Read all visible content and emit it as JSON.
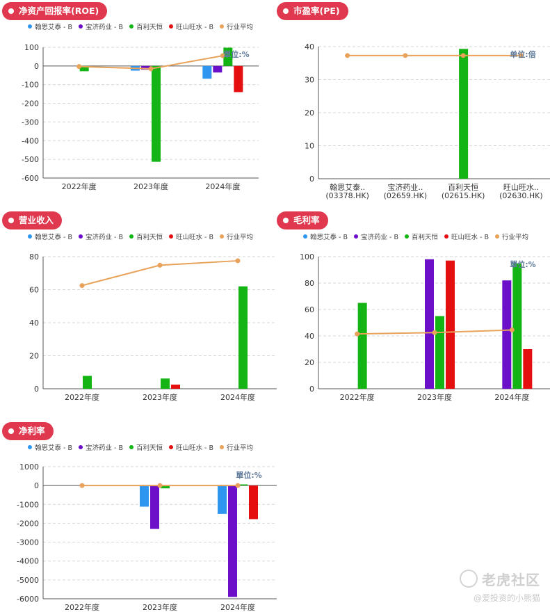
{
  "colors": {
    "hansoh": "#2f96f0",
    "baoji": "#6b0fc8",
    "baili": "#14b414",
    "wangshan": "#e50f0f",
    "avg": "#e8a25a",
    "pill": "#e0384e"
  },
  "legend_items": [
    "翰思艾泰 - B",
    "宝济药业 - B",
    "百利天恒",
    "旺山旺水 - B",
    "行业平均"
  ],
  "watermark": {
    "logo": "老虎社区",
    "user": "@爱投资的小熊猫"
  },
  "chart_data": [
    {
      "id": "roe",
      "type": "bar",
      "title": "净资产回报率(ROE)",
      "unit": "單位:%",
      "categories": [
        "2022年度",
        "2023年度",
        "2024年度"
      ],
      "ylim": [
        -600,
        100
      ],
      "yticks": [
        100,
        0,
        -100,
        -200,
        -300,
        -400,
        -500,
        -600
      ],
      "series": [
        {
          "name": "翰思艾泰 - B",
          "color_key": "hansoh",
          "values": [
            null,
            -25,
            -68
          ]
        },
        {
          "name": "宝济药业 - B",
          "color_key": "baoji",
          "values": [
            null,
            -20,
            -35
          ]
        },
        {
          "name": "百利天恒",
          "color_key": "baili",
          "values": [
            -28,
            -513,
            98
          ]
        },
        {
          "name": "旺山旺水 - B",
          "color_key": "wangshan",
          "values": [
            null,
            null,
            -140
          ]
        }
      ],
      "line": {
        "name": "行业平均",
        "color_key": "avg",
        "values": [
          -3,
          -15,
          55
        ]
      }
    },
    {
      "id": "pe",
      "type": "bar",
      "title": "市盈率(PE)",
      "unit": "单位:倍",
      "categories": [
        "翰思艾泰..\n(03378.HK)",
        "宝济药业..\n(02659.HK)",
        "百利天恒\n(02615.HK)",
        "旺山旺水..\n(02630.HK)"
      ],
      "ylim": [
        0,
        40
      ],
      "yticks": [
        40,
        30,
        20,
        10,
        0
      ],
      "bars": [
        {
          "category_index": 2,
          "value": 39.3,
          "color_key": "baili"
        }
      ],
      "line": {
        "name": "行业平均",
        "color_key": "avg",
        "values": [
          37.3,
          37.3,
          37.3,
          37.3
        ]
      }
    },
    {
      "id": "revenue",
      "type": "bar",
      "title": "营业收入",
      "unit": "",
      "categories": [
        "2022年度",
        "2023年度",
        "2024年度"
      ],
      "ylim": [
        0,
        80
      ],
      "yticks": [
        80,
        60,
        40,
        20,
        0
      ],
      "series": [
        {
          "name": "翰思艾泰 - B",
          "color_key": "hansoh",
          "values": [
            null,
            null,
            null
          ]
        },
        {
          "name": "宝济药业 - B",
          "color_key": "baoji",
          "values": [
            null,
            null,
            null
          ]
        },
        {
          "name": "百利天恒",
          "color_key": "baili",
          "values": [
            7.8,
            6.2,
            62.0
          ]
        },
        {
          "name": "旺山旺水 - B",
          "color_key": "wangshan",
          "values": [
            null,
            2.5,
            null
          ]
        }
      ],
      "line": {
        "name": "行业平均",
        "color_key": "avg",
        "values": [
          62.5,
          74.8,
          77.5
        ]
      }
    },
    {
      "id": "gross_margin",
      "type": "bar",
      "title": "毛利率",
      "unit": "單位:%",
      "categories": [
        "2022年度",
        "2023年度",
        "2024年度"
      ],
      "ylim": [
        0,
        100
      ],
      "yticks": [
        100,
        80,
        60,
        40,
        20,
        0
      ],
      "series": [
        {
          "name": "翰思艾泰 - B",
          "color_key": "hansoh",
          "values": [
            null,
            null,
            null
          ]
        },
        {
          "name": "宝济药业 - B",
          "color_key": "baoji",
          "values": [
            null,
            98,
            82
          ]
        },
        {
          "name": "百利天恒",
          "color_key": "baili",
          "values": [
            65,
            55,
            95
          ]
        },
        {
          "name": "旺山旺水 - B",
          "color_key": "wangshan",
          "values": [
            null,
            97,
            30
          ]
        }
      ],
      "line": {
        "name": "行业平均",
        "color_key": "avg",
        "values": [
          41.5,
          42.5,
          44.5
        ]
      }
    },
    {
      "id": "net_margin",
      "type": "bar",
      "title": "净利率",
      "unit": "單位:%",
      "categories": [
        "2022年度",
        "2023年度",
        "2024年度"
      ],
      "ylim": [
        -6000,
        1000
      ],
      "yticks": [
        1000,
        0,
        -1000,
        -2000,
        -3000,
        -4000,
        -5000,
        -6000
      ],
      "series": [
        {
          "name": "翰思艾泰 - B",
          "color_key": "hansoh",
          "values": [
            null,
            -1120,
            -1500
          ]
        },
        {
          "name": "宝济药业 - B",
          "color_key": "baoji",
          "values": [
            null,
            -2300,
            -5900
          ]
        },
        {
          "name": "百利天恒",
          "color_key": "baili",
          "values": [
            null,
            -150,
            60
          ]
        },
        {
          "name": "旺山旺水 - B",
          "color_key": "wangshan",
          "values": [
            null,
            null,
            -1780
          ]
        }
      ],
      "line": {
        "name": "行业平均",
        "color_key": "avg",
        "values": [
          0,
          0,
          0
        ]
      }
    }
  ]
}
